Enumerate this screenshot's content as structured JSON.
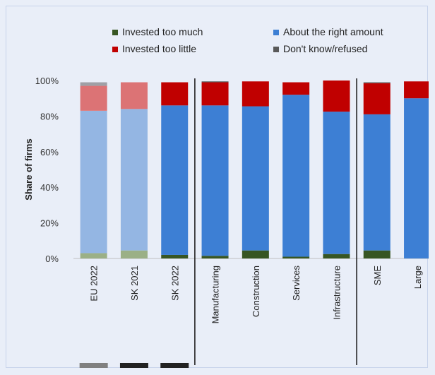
{
  "chart_data": {
    "type": "bar",
    "stacked": true,
    "ylabel": "Share of firms",
    "ylim": [
      0,
      100
    ],
    "yticks": [
      "0%",
      "20%",
      "40%",
      "60%",
      "80%",
      "100%"
    ],
    "categories": [
      "EU 2022",
      "SK 2021",
      "SK 2022",
      "Manufacturing",
      "Construction",
      "Services",
      "Infrastructure",
      "SME",
      "Large"
    ],
    "faded": [
      true,
      true,
      false,
      false,
      false,
      false,
      false,
      false,
      false
    ],
    "group_separators_after": [
      2,
      6
    ],
    "series": [
      {
        "name": "Invested too much",
        "color": "#375623",
        "faded_color": "#9bb086",
        "values": [
          3,
          4.5,
          2,
          1.5,
          4.5,
          1,
          2.5,
          4.5,
          0
        ]
      },
      {
        "name": "About the right amount",
        "color": "#3d7fd4",
        "faded_color": "#94b6e3",
        "values": [
          80,
          79.5,
          84,
          84.5,
          81,
          91,
          80,
          76.5,
          90
        ]
      },
      {
        "name": "Invested too little",
        "color": "#c00000",
        "faded_color": "#dc7375",
        "values": [
          14,
          15,
          13,
          13,
          14,
          7,
          17.5,
          17.5,
          9.5
        ]
      },
      {
        "name": "Don't know/refused",
        "color": "#595959",
        "faded_color": "#9fa0a6",
        "values": [
          2,
          0,
          0,
          0.5,
          0,
          0,
          0,
          0.5,
          0
        ]
      }
    ],
    "legend_position": "top",
    "footer_markers": [
      {
        "color": "#808080"
      },
      {
        "color": "#222222"
      },
      {
        "color": "#222222"
      }
    ]
  }
}
